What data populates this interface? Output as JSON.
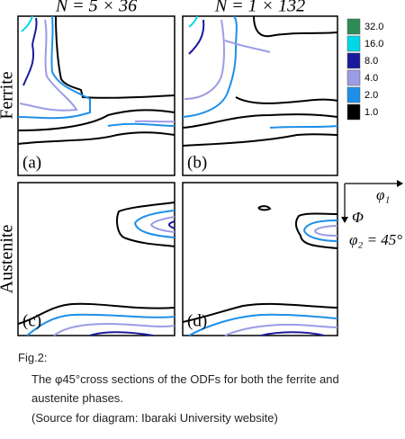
{
  "columns": [
    "N = 5 × 36",
    "N = 1 × 132"
  ],
  "rows": [
    "Ferrite",
    "Austenite"
  ],
  "panels": [
    "(a)",
    "(b)",
    "(c)",
    "(d)"
  ],
  "legend": [
    {
      "label": "32.0",
      "color": "#2e8b57"
    },
    {
      "label": "16.0",
      "color": "#00d8e8"
    },
    {
      "label": "8.0",
      "color": "#1a1a9c"
    },
    {
      "label": "4.0",
      "color": "#9c9ce6"
    },
    {
      "label": "2.0",
      "color": "#1e8fe8"
    },
    {
      "label": "1.0",
      "color": "#000000"
    }
  ],
  "axes": {
    "phi1": "φ₁",
    "Phi": "Φ",
    "phi2": "φ₂ = 45°"
  },
  "caption": {
    "number": "Fig.2:",
    "lines": [
      "The φ45°cross sections of the ODFs for both the ferrite and",
      "austenite phases.",
      "(Source for diagram: Ibaraki University website)"
    ]
  }
}
